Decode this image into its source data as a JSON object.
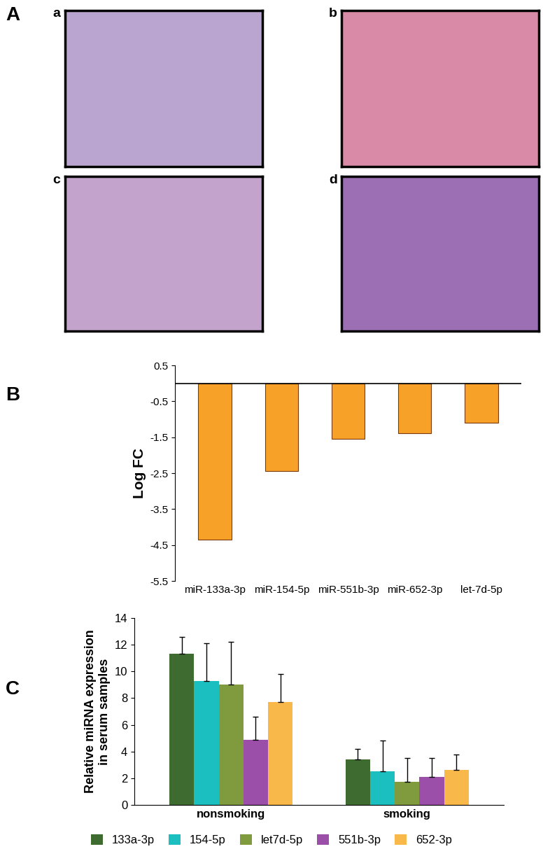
{
  "panel_a": {
    "label": "A",
    "images": [
      "a",
      "b",
      "c",
      "d"
    ]
  },
  "chart_data": [
    {
      "type": "bar",
      "title": "B",
      "y_label": "Log FC",
      "categories": [
        "miR-133a-3p",
        "miR-154-5p",
        "miR-551b-3p",
        "miR-652-3p",
        "let-7d-5p"
      ],
      "values": [
        -4.35,
        -2.45,
        -1.55,
        -1.38,
        -1.1
      ],
      "color": "#f7a128",
      "ylim": [
        -5.5,
        0.5
      ],
      "yticks": [
        0.5,
        -0.5,
        -1.5,
        -2.5,
        -3.5,
        -4.5,
        -5.5
      ]
    },
    {
      "type": "bar",
      "title": "C",
      "y_label": "Relative miRNA expression\nin serum samples",
      "categories": [
        "nonsmoking",
        "smoking"
      ],
      "series": [
        {
          "name": "133a-3p",
          "color": "#3d6b30",
          "values": [
            11.3,
            3.4
          ],
          "error": [
            1.3,
            0.8
          ]
        },
        {
          "name": "154-5p",
          "color": "#1cbfc0",
          "values": [
            9.3,
            2.5
          ],
          "error": [
            2.8,
            2.3
          ]
        },
        {
          "name": "let7d-5p",
          "color": "#7f9b3d",
          "values": [
            9.0,
            1.75
          ],
          "error": [
            3.2,
            1.75
          ]
        },
        {
          "name": "551b-3p",
          "color": "#9c4fa8",
          "values": [
            4.9,
            2.1
          ],
          "error": [
            1.7,
            1.4
          ]
        },
        {
          "name": "652-3p",
          "color": "#f9b94a",
          "values": [
            7.7,
            2.6
          ],
          "error": [
            2.1,
            1.2
          ]
        }
      ],
      "ylim": [
        0,
        14
      ],
      "yticks": [
        0,
        2,
        4,
        6,
        8,
        10,
        12,
        14
      ],
      "legend": "lower center"
    }
  ]
}
